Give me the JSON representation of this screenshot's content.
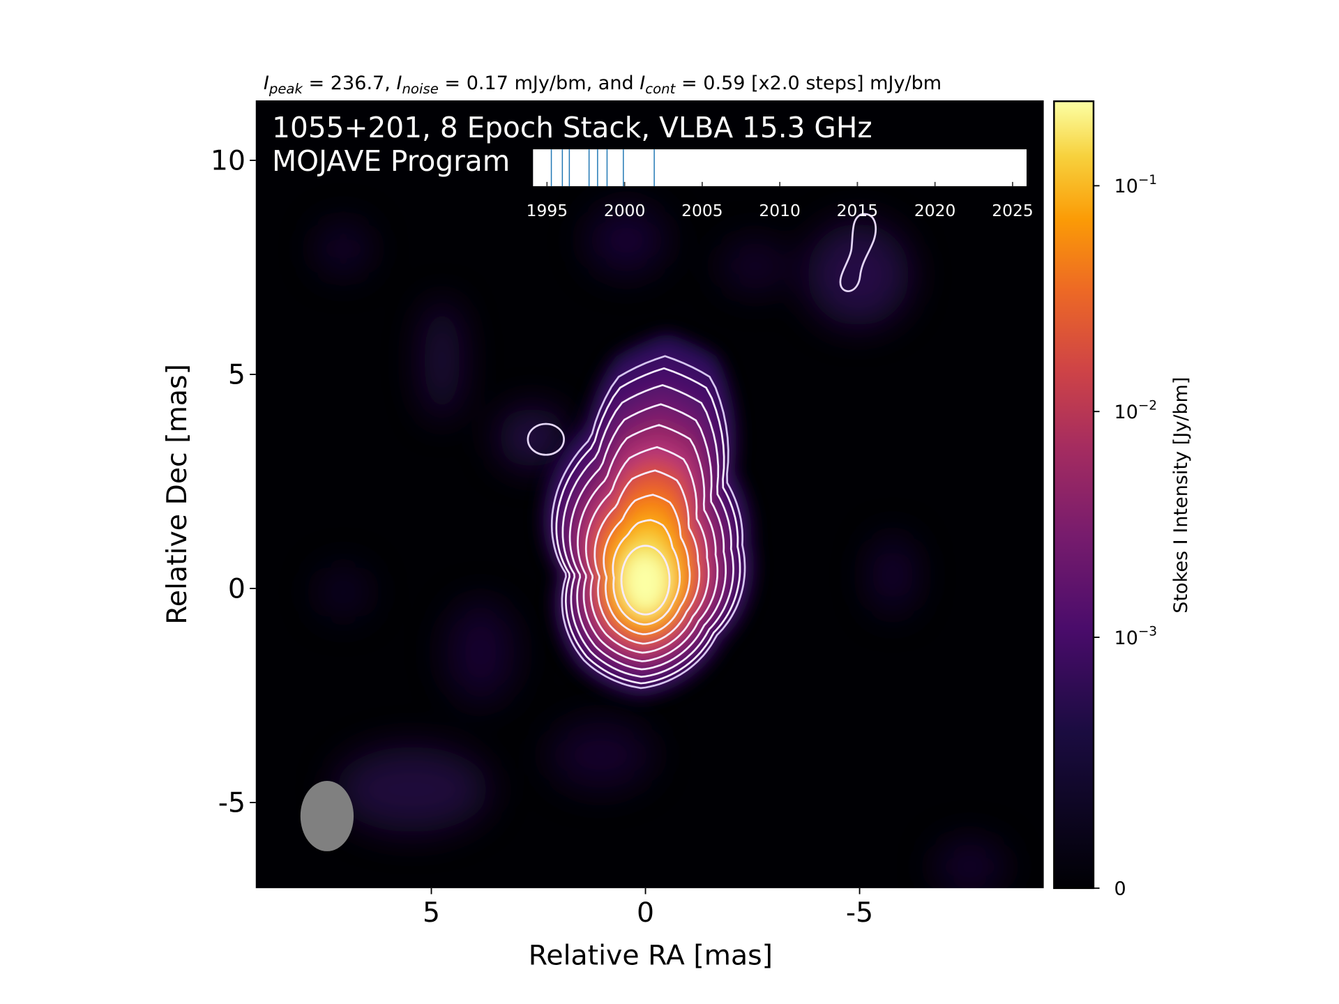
{
  "chart_data": {
    "type": "image",
    "title_parts": [
      [
        "I",
        "peak",
        " = 236.7, "
      ],
      [
        "I",
        "noise",
        " = 0.17 mJy/bm, and "
      ],
      [
        "I",
        "cont",
        " = 0.59 [x2.0 steps] mJy/bm"
      ]
    ],
    "annotation": [
      "1055+201, 8 Epoch Stack, VLBA 15.3 GHz",
      "MOJAVE Program"
    ],
    "xlabel": "Relative RA [mas]",
    "ylabel": "Relative Dec [mas]",
    "xlim": [
      9.1,
      -9.3
    ],
    "xticks": [
      5,
      0,
      -5
    ],
    "ylim": [
      -7.0,
      11.4
    ],
    "yticks": [
      -5,
      0,
      5,
      10
    ],
    "colorbar": {
      "label": "Stokes I Intensity [Jy/bm]",
      "scale": "symlog",
      "linthresh": 0.001,
      "linscale": 1,
      "clim": [
        0,
        0.2367
      ],
      "ticks": [
        0,
        {
          "value": 0.001,
          "label": "10",
          "exponent": "−3"
        },
        {
          "value": 0.01,
          "label": "10",
          "exponent": "−2"
        },
        {
          "value": 0.1,
          "label": "10",
          "exponent": "−1"
        }
      ]
    },
    "epochs_inset": {
      "xlim": [
        1994.1,
        2025.9
      ],
      "xticks": [
        1995,
        2000,
        2005,
        2010,
        2015,
        2020,
        2025
      ],
      "epochs": [
        1995.28,
        1995.99,
        1996.44,
        1997.71,
        1998.26,
        1998.87,
        1999.92,
        2001.91
      ],
      "color": "#1f77b4"
    }
  }
}
